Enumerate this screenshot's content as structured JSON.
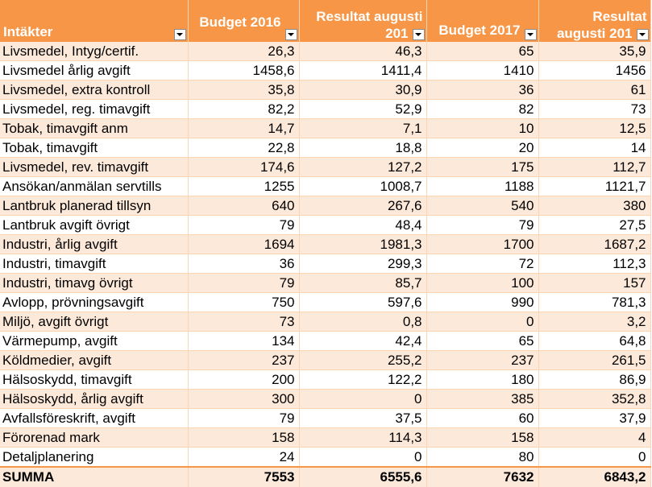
{
  "header": {
    "columns": [
      {
        "label": "Intäkter",
        "lines": [
          "Intäkter"
        ]
      },
      {
        "label": "Budget 2016",
        "lines": [
          "Budget 2016"
        ]
      },
      {
        "label": "Resultat augusti 201",
        "lines": [
          "Resultat augusti",
          "201"
        ]
      },
      {
        "label": "Budget 2017",
        "lines": [
          "Budget 2017"
        ]
      },
      {
        "label": "Resultat augusti 201",
        "lines": [
          "Resultat",
          "augusti 201"
        ]
      }
    ]
  },
  "rows": [
    [
      "Livsmedel, Intyg/certif.",
      "26,3",
      "46,3",
      "65",
      "35,9"
    ],
    [
      "Livsmedel årlig avgift",
      "1458,6",
      "1411,4",
      "1410",
      "1456"
    ],
    [
      "Livsmedel, extra kontroll",
      "35,8",
      "30,9",
      "36",
      "61"
    ],
    [
      "Livsmedel, reg. timavgift",
      "82,2",
      "52,9",
      "82",
      "73"
    ],
    [
      "Tobak, timavgift anm",
      "14,7",
      "7,1",
      "10",
      "12,5"
    ],
    [
      "Tobak, timavgift",
      "22,8",
      "18,8",
      "20",
      "14"
    ],
    [
      "Livsmedel, rev. timavgift",
      "174,6",
      "127,2",
      "175",
      "112,7"
    ],
    [
      "Ansökan/anmälan servtills",
      "1255",
      "1008,7",
      "1188",
      "1121,7"
    ],
    [
      "Lantbruk planerad tillsyn",
      "640",
      "267,6",
      "540",
      "380"
    ],
    [
      "Lantbruk avgift övrigt",
      "79",
      "48,4",
      "79",
      "27,5"
    ],
    [
      "Industri, årlig avgift",
      "1694",
      "1981,3",
      "1700",
      "1687,2"
    ],
    [
      "Industri, timavgift",
      "36",
      "299,3",
      "72",
      "112,3"
    ],
    [
      "Industri, timavg övrigt",
      "79",
      "85,7",
      "100",
      "157"
    ],
    [
      "Avlopp, prövningsavgift",
      "750",
      "597,6",
      "990",
      "781,3"
    ],
    [
      "Miljö, avgift övrigt",
      "73",
      "0,8",
      "0",
      "3,2"
    ],
    [
      "Värmepump, avgift",
      "134",
      "42,4",
      "65",
      "64,8"
    ],
    [
      "Köldmedier, avgift",
      "237",
      "255,2",
      "237",
      "261,5"
    ],
    [
      "Hälsoskydd, timavgift",
      "200",
      "122,2",
      "180",
      "86,9"
    ],
    [
      "Hälsoskydd, årlig avgift",
      "300",
      "0",
      "385",
      "352,8"
    ],
    [
      "Avfallsföreskrift, avgift",
      "79",
      "37,5",
      "60",
      "37,9"
    ],
    [
      "Förorenad mark",
      "158",
      "114,3",
      "158",
      "4"
    ],
    [
      "Detaljplanering",
      "24",
      "0",
      "80",
      "0"
    ]
  ],
  "total": [
    "SUMMA",
    "7553",
    "6555,6",
    "7632",
    "6843,2"
  ],
  "colors": {
    "header_bg": "#f79646",
    "band_row": "#fde9d9",
    "header_text": "#ffffff"
  },
  "icons": {
    "filter": "dropdown-filter-icon"
  }
}
